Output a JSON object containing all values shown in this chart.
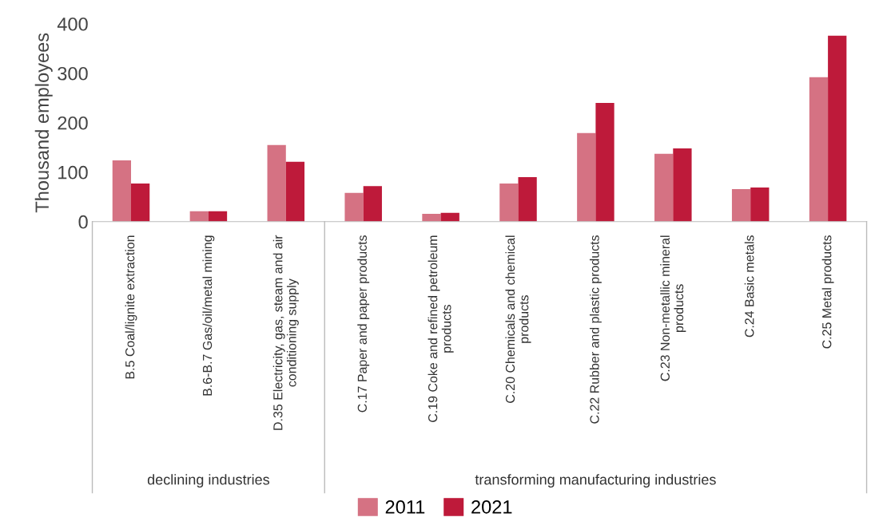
{
  "chart_data": {
    "type": "bar",
    "ylabel": "Thousand employees",
    "categories": [
      "B.5 Coal/lignite extraction",
      "B.6-B.7 Gas/oil/metal mining",
      "D.35 Electricity, gas, steam and air\nconditioning supply",
      "C.17 Paper and paper products",
      "C.19 Coke and refined petroleum\nproducts",
      "C.20 Chemicals and chemical\nproducts",
      "C.22 Rubber and plastic products",
      "C.23 Non-metallic mineral\nproducts",
      "C.24 Basic metals",
      "C.25 Metal products"
    ],
    "series": [
      {
        "name": "2011",
        "color": "#d57283",
        "values": [
          124,
          21,
          155,
          58,
          16,
          77,
          179,
          137,
          66,
          292
        ]
      },
      {
        "name": "2021",
        "color": "#be1a3a",
        "values": [
          77,
          21,
          121,
          72,
          18,
          90,
          240,
          148,
          69,
          376
        ]
      }
    ],
    "ylim": [
      0,
      400
    ],
    "yticks": [
      0,
      100,
      200,
      300,
      400
    ],
    "grid": false,
    "legend": "bottom",
    "annotations": [
      "declining industries",
      "transforming manufacturing industries"
    ]
  }
}
